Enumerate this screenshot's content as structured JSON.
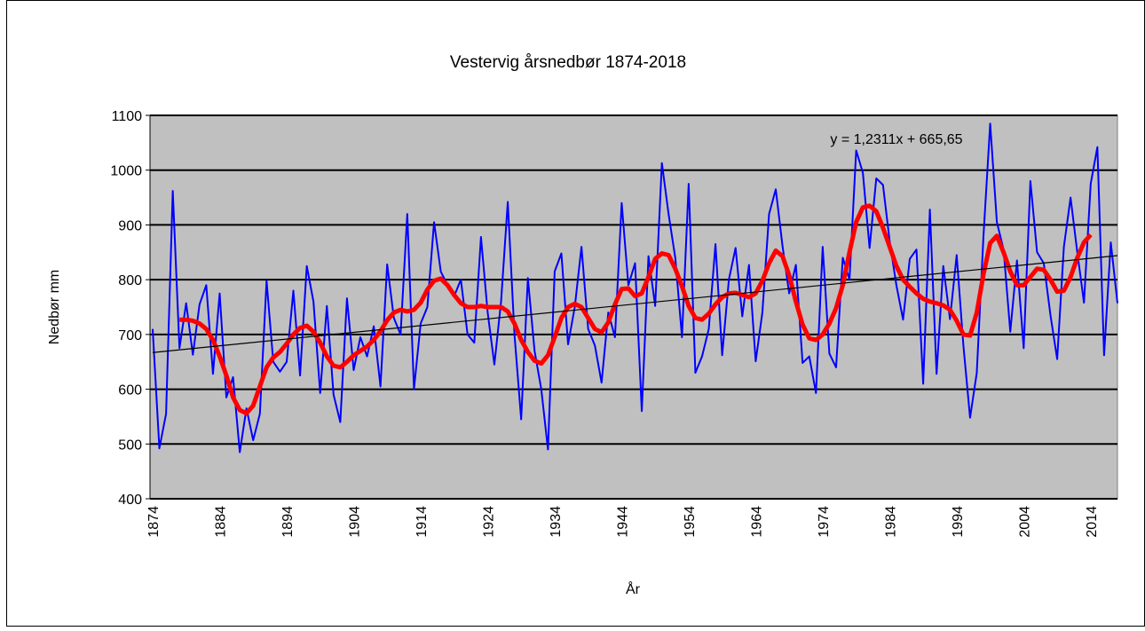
{
  "chart_data": {
    "type": "line",
    "title": "Vestervig årsnedbør 1874-2018",
    "ylabel": "Nedbør mm",
    "xlabel": "År",
    "annotation": "y = 1,2311x + 665,65",
    "categories": [
      "1874",
      null,
      null,
      null,
      null,
      null,
      null,
      null,
      null,
      null,
      "1884",
      null,
      null,
      null,
      null,
      null,
      null,
      null,
      null,
      null,
      "1894",
      null,
      null,
      null,
      null,
      null,
      null,
      null,
      null,
      null,
      "1904",
      null,
      null,
      null,
      null,
      null,
      null,
      null,
      null,
      null,
      "1914",
      null,
      null,
      null,
      null,
      null,
      null,
      null,
      null,
      null,
      "1924",
      null,
      null,
      null,
      null,
      null,
      null,
      null,
      null,
      null,
      "1934",
      null,
      null,
      null,
      null,
      null,
      null,
      null,
      null,
      null,
      "1944",
      null,
      null,
      null,
      null,
      null,
      null,
      null,
      null,
      null,
      "1954",
      null,
      null,
      null,
      null,
      null,
      null,
      null,
      null,
      null,
      "1964",
      null,
      null,
      null,
      null,
      null,
      null,
      null,
      null,
      null,
      "1974",
      null,
      null,
      null,
      null,
      null,
      null,
      null,
      null,
      null,
      "1984",
      null,
      null,
      null,
      null,
      null,
      null,
      null,
      null,
      null,
      "1994",
      null,
      null,
      null,
      null,
      null,
      null,
      null,
      null,
      null,
      "2004",
      null,
      null,
      null,
      null,
      null,
      null,
      null,
      null,
      null,
      "2014",
      null,
      null,
      null,
      null
    ],
    "series": [
      {
        "color": "#0000ff",
        "width": 2,
        "values": [
          710,
          492,
          555,
          962,
          675,
          757,
          663,
          755,
          790,
          628,
          775,
          585,
          622,
          485,
          565,
          507,
          555,
          798,
          650,
          632,
          650,
          780,
          625,
          825,
          760,
          593,
          752,
          590,
          540,
          766,
          635,
          695,
          660,
          715,
          605,
          828,
          730,
          700,
          920,
          600,
          720,
          750,
          905,
          815,
          790,
          770,
          800,
          700,
          685,
          878,
          740,
          645,
          760,
          942,
          700,
          545,
          803,
          670,
          600,
          490,
          815,
          848,
          682,
          750,
          860,
          710,
          680,
          612,
          740,
          695,
          940,
          790,
          830,
          560,
          843,
          752,
          1013,
          920,
          840,
          695,
          975,
          630,
          660,
          710,
          865,
          662,
          800,
          858,
          733,
          827,
          651,
          740,
          920,
          965,
          862,
          775,
          827,
          648,
          660,
          593,
          860,
          665,
          640,
          840,
          800,
          1036,
          995,
          858,
          985,
          973,
          870,
          790,
          727,
          838,
          855,
          610,
          928,
          628,
          825,
          728,
          845,
          680,
          548,
          630,
          880,
          1085,
          905,
          855,
          705,
          835,
          675,
          980,
          850,
          830,
          735,
          655,
          860,
          950,
          850,
          758,
          975,
          1042,
          662,
          868,
          757
        ]
      },
      {
        "color": "#ff0000",
        "width": 5,
        "values": [
          null,
          null,
          null,
          null,
          727,
          727,
          725,
          720,
          710,
          690,
          660,
          625,
          585,
          562,
          556,
          570,
          605,
          640,
          658,
          668,
          683,
          700,
          712,
          716,
          705,
          685,
          660,
          643,
          640,
          650,
          662,
          670,
          678,
          690,
          706,
          726,
          740,
          745,
          742,
          745,
          758,
          782,
          798,
          802,
          790,
          772,
          757,
          750,
          750,
          752,
          750,
          750,
          750,
          742,
          720,
          690,
          668,
          652,
          647,
          662,
          695,
          730,
          750,
          756,
          750,
          730,
          710,
          704,
          722,
          755,
          783,
          784,
          770,
          775,
          805,
          838,
          848,
          845,
          820,
          788,
          752,
          730,
          727,
          738,
          755,
          768,
          775,
          776,
          772,
          768,
          775,
          798,
          830,
          853,
          843,
          808,
          760,
          718,
          693,
          690,
          700,
          720,
          748,
          790,
          850,
          905,
          932,
          935,
          925,
          895,
          860,
          825,
          800,
          787,
          775,
          765,
          760,
          757,
          753,
          745,
          725,
          700,
          698,
          740,
          810,
          867,
          880,
          850,
          815,
          790,
          790,
          805,
          820,
          818,
          800,
          778,
          780,
          805,
          840,
          868,
          882,
          null,
          null,
          null,
          null
        ]
      }
    ],
    "trendline": {
      "color": "#000000",
      "values": [
        667,
        844
      ]
    },
    "ylim": [
      400,
      1100
    ],
    "yticks": [
      400,
      500,
      600,
      700,
      800,
      900,
      1000,
      1100
    ],
    "grid": true,
    "plot_background": "#c0c0c0"
  }
}
